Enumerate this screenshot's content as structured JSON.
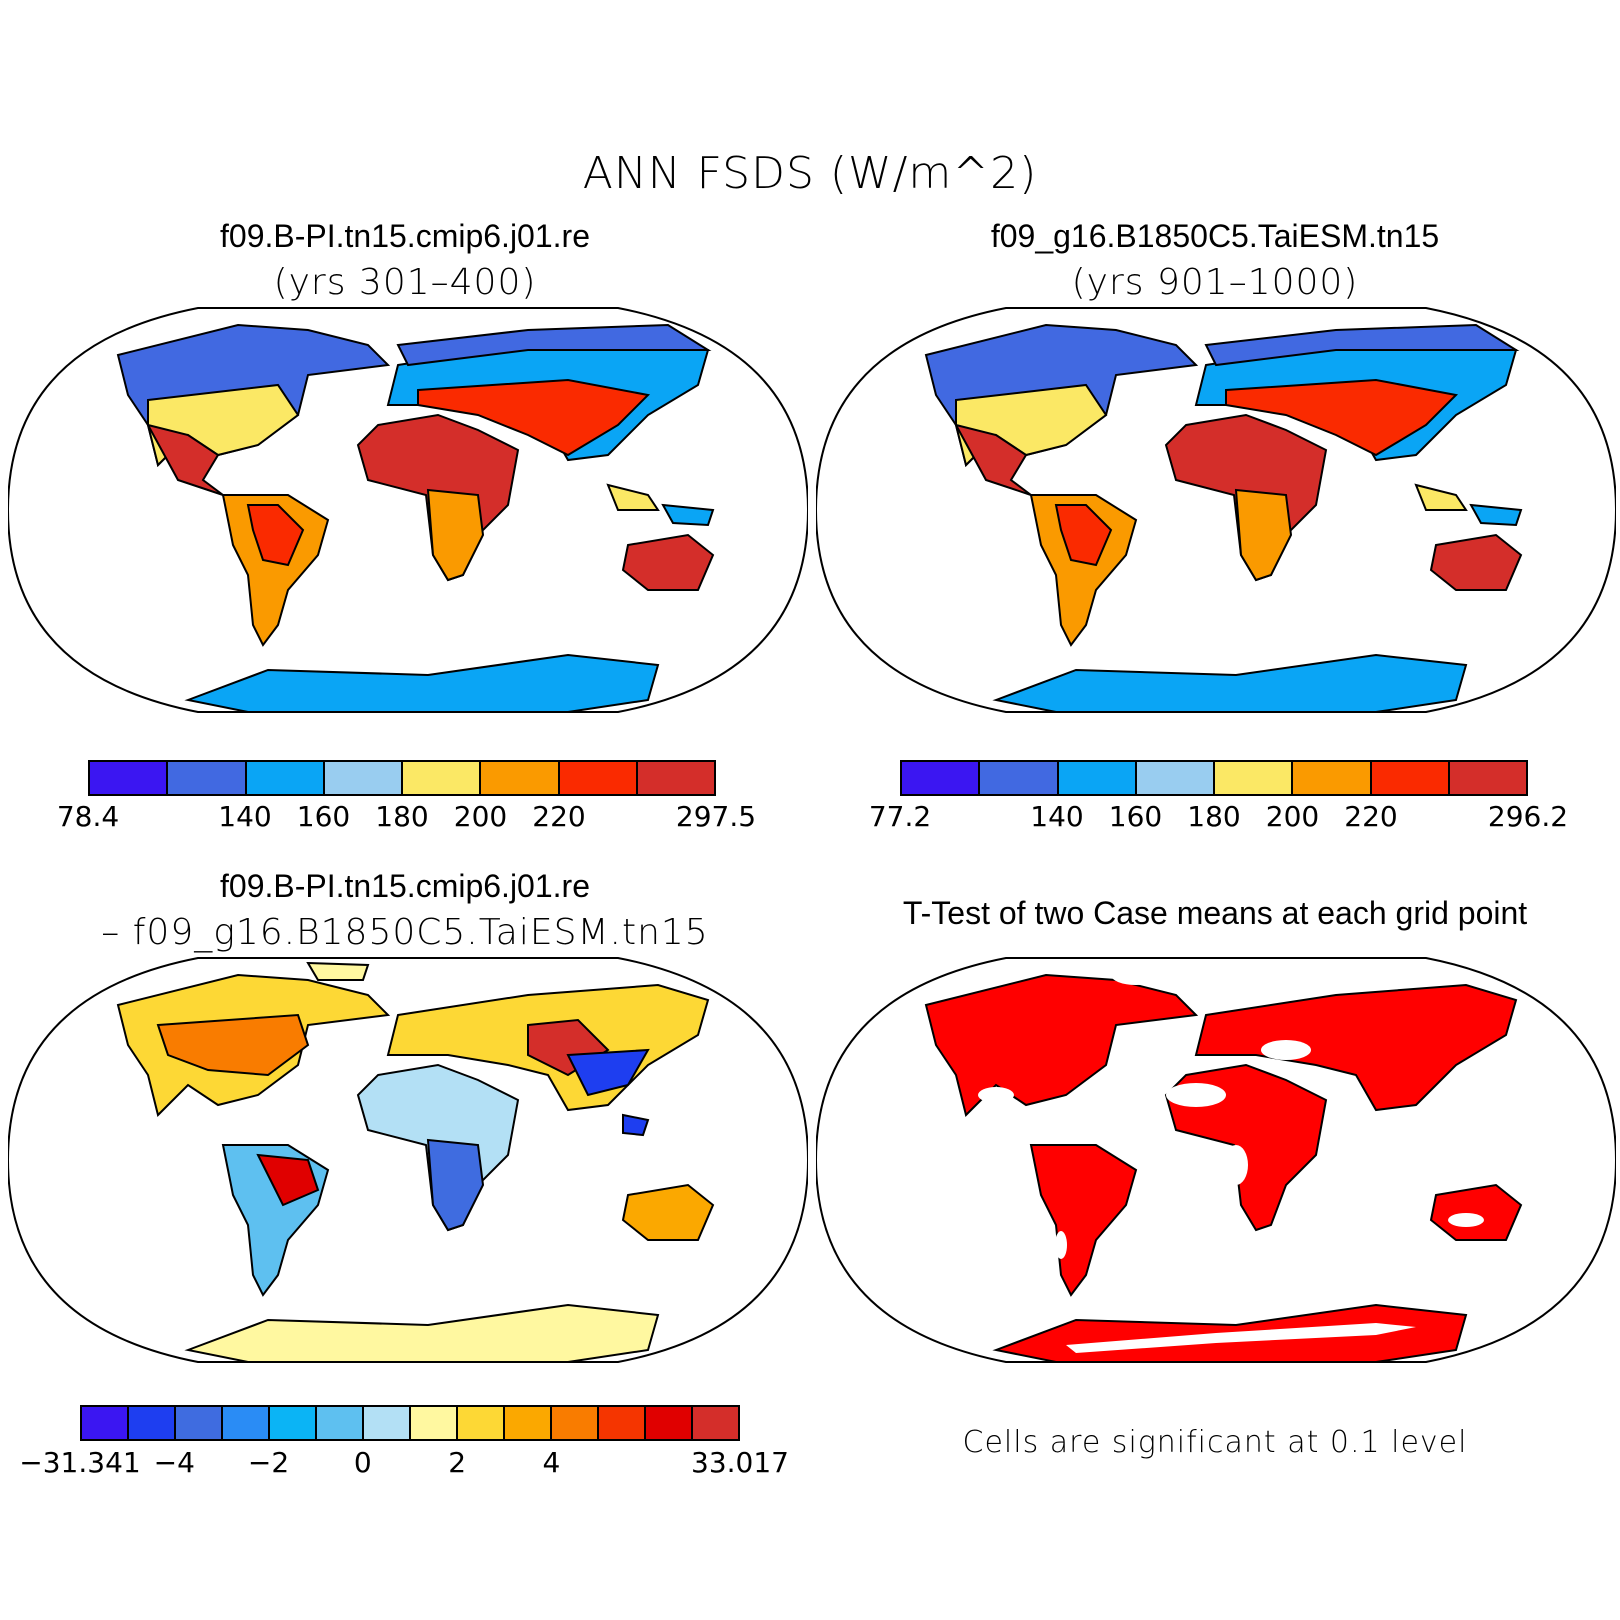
{
  "figure": {
    "main_title": "ANN FSDS (W/m^2)"
  },
  "panels": {
    "top_left": {
      "title": "f09.B-PI.tn15.cmip6.j01.re",
      "subtitle": "(yrs 301–400)",
      "colorbar": {
        "colors": [
          "#3b16f2",
          "#4169e1",
          "#0aa5f5",
          "#99cdf0",
          "#fbe865",
          "#fa9a00",
          "#fa2a00",
          "#d42e2a"
        ],
        "labels": [
          "78.4",
          "140",
          "160",
          "180",
          "200",
          "220",
          "297.5"
        ]
      }
    },
    "top_right": {
      "title": "f09_g16.B1850C5.TaiESM.tn15",
      "subtitle": "(yrs 901–1000)",
      "colorbar": {
        "colors": [
          "#3b16f2",
          "#4169e1",
          "#0aa5f5",
          "#99cdf0",
          "#fbe865",
          "#fa9a00",
          "#fa2a00",
          "#d42e2a"
        ],
        "labels": [
          "77.2",
          "140",
          "160",
          "180",
          "200",
          "220",
          "296.2"
        ]
      }
    },
    "bottom_left": {
      "title": "f09.B-PI.tn15.cmip6.j01.re",
      "subtitle": "– f09_g16.B1850C5.TaiESM.tn15",
      "colorbar": {
        "colors": [
          "#3b16f2",
          "#1e3ef0",
          "#3f6ce0",
          "#2a8cf5",
          "#0bb4f5",
          "#5ec0f0",
          "#b3e0f5",
          "#fff8a0",
          "#fdd835",
          "#fba800",
          "#f97c00",
          "#f53500",
          "#e00000",
          "#d42e2a"
        ],
        "labels": [
          "−31.341",
          "−4",
          "−2",
          "0",
          "2",
          "4",
          "33.017"
        ]
      }
    },
    "bottom_right": {
      "title": "T-Test of two Case means at each grid point",
      "footnote": "Cells are significant at 0.1 level",
      "significant_color": "#ff0000"
    }
  }
}
